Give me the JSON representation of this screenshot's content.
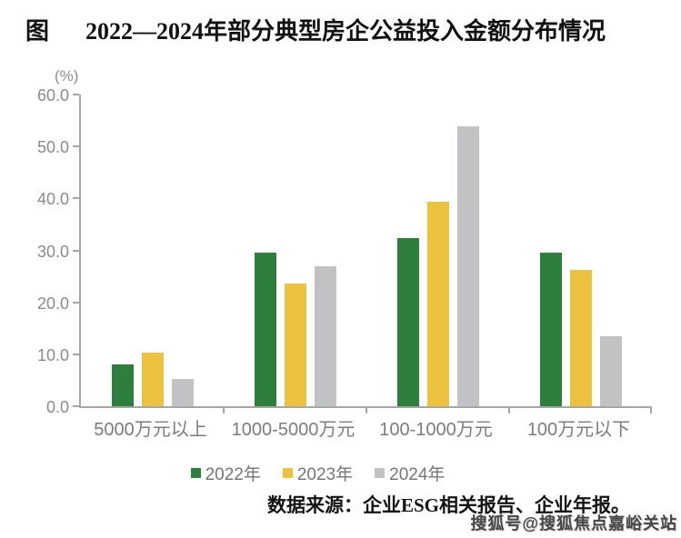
{
  "title": {
    "prefix": "图",
    "text": "2022—2024年部分典型房企公益投入金额分布情况"
  },
  "chart_data": {
    "type": "bar",
    "title": "2022—2024年部分典型房企公益投入金额分布情况",
    "unit_label": "(%)",
    "categories": [
      "5000万元以上",
      "1000-5000万元",
      "100-1000万元",
      "100万元以下"
    ],
    "series": [
      {
        "name": "2022年",
        "color": "#2e7e3e",
        "values": [
          8.0,
          29.5,
          32.4,
          29.5
        ]
      },
      {
        "name": "2023年",
        "color": "#ecc13e",
        "values": [
          10.3,
          23.6,
          39.4,
          26.2
        ]
      },
      {
        "name": "2024年",
        "color": "#c1c2c4",
        "values": [
          5.3,
          26.9,
          53.9,
          13.4
        ]
      }
    ],
    "ylim": [
      0,
      60
    ],
    "ytick_labels": [
      "60.0",
      "50.0",
      "40.0",
      "30.0",
      "20.0",
      "10.0",
      "0.0"
    ],
    "xlabel": "",
    "ylabel": "(%)",
    "grid": false,
    "legend_position": "bottom"
  },
  "source_note": "数据来源：企业ESG相关报告、企业年报。",
  "watermark": "搜狐号@搜狐焦点嘉峪关站",
  "colors": {
    "axis": "#a6a6a6",
    "tick_text": "#8a8a8a",
    "category_text": "#7c7c7c",
    "legend_text": "#757575",
    "title_text": "#111111"
  }
}
